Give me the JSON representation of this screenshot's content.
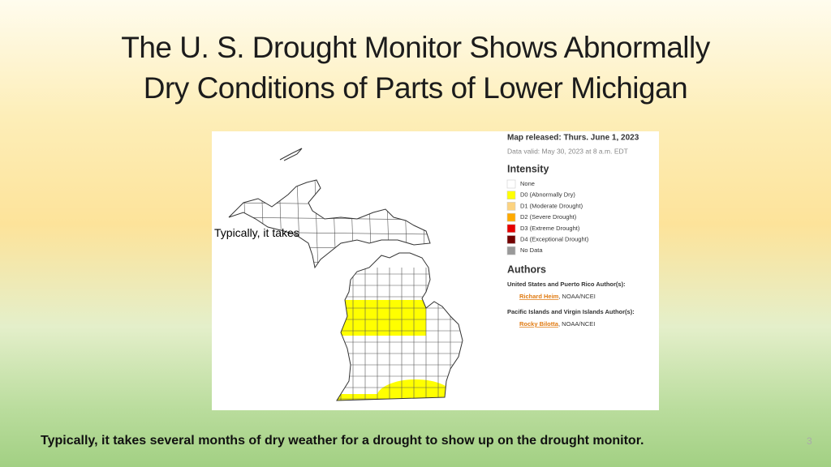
{
  "title": [
    "The  U. S.  Drought Monitor Shows Abnormally",
    "Dry Conditions of Parts of Lower Michigan"
  ],
  "map": {
    "released": "Map released: Thurs. June 1, 2023",
    "valid": "Data valid: May 30, 2023 at 8 a.m. EDT",
    "intensity_heading": "Intensity",
    "legend": [
      {
        "label": "None",
        "color": "#ffffff"
      },
      {
        "label": "D0 (Abnormally Dry)",
        "color": "#ffff00"
      },
      {
        "label": "D1 (Moderate Drought)",
        "color": "#fcd37f"
      },
      {
        "label": "D2 (Severe Drought)",
        "color": "#ffaa00"
      },
      {
        "label": "D3 (Extreme Drought)",
        "color": "#e60000"
      },
      {
        "label": "D4 (Exceptional Drought)",
        "color": "#730000"
      },
      {
        "label": "No Data",
        "color": "#999999"
      }
    ],
    "authors_heading": "Authors",
    "authors": [
      {
        "region": "United States and Puerto Rico Author(s):",
        "name": "Richard Heim",
        "affiliation": ", NOAA/NCEI"
      },
      {
        "region": "Pacific Islands and Virgin Islands Author(s):",
        "name": "Rocky Bilotta",
        "affiliation": ", NOAA/NCEI"
      }
    ]
  },
  "overlay_text": "Typically, it takes",
  "caption": "Typically, it takes several months of dry weather for a drought to show up on the drought monitor.",
  "slide_number": "3"
}
